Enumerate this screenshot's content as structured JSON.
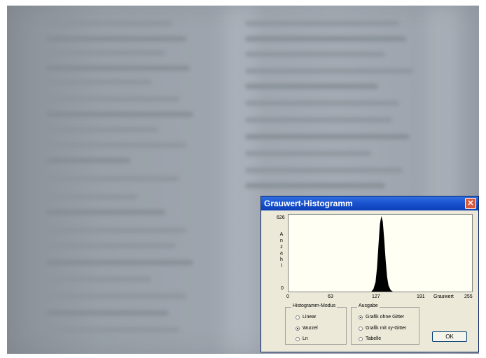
{
  "dialog": {
    "title": "Grauwert-Histogramm",
    "close_label": "✕"
  },
  "plot": {
    "y_max": "626",
    "y_min": "0",
    "y_axis_letters": [
      "A",
      "n",
      "z",
      "a",
      "h",
      "l"
    ],
    "x_ticks": [
      "0",
      "63",
      "127",
      "191",
      "255"
    ],
    "x_label": "Grauwert"
  },
  "chart_data": {
    "type": "area",
    "ylim": [
      0,
      626
    ],
    "xlim": [
      0,
      255
    ],
    "ylabel": "Anzahl",
    "xlabel": "Grauwert",
    "x": [
      115,
      118,
      121,
      123,
      125,
      127,
      129,
      131,
      133,
      135,
      137,
      139,
      142,
      145
    ],
    "values": [
      0,
      20,
      80,
      200,
      380,
      560,
      626,
      580,
      430,
      260,
      120,
      50,
      12,
      0
    ],
    "grid": false
  },
  "histogram_mode": {
    "label": "Histogramm-Modus",
    "options": [
      "Linear",
      "Wurzel",
      "Ln"
    ],
    "selected": 1
  },
  "output": {
    "label": "Ausgabe",
    "options": [
      "Grafik ohne Gitter",
      "Grafik mit xy-Gitter",
      "Tabelle"
    ],
    "selected": 0
  },
  "ok_label": "OK"
}
